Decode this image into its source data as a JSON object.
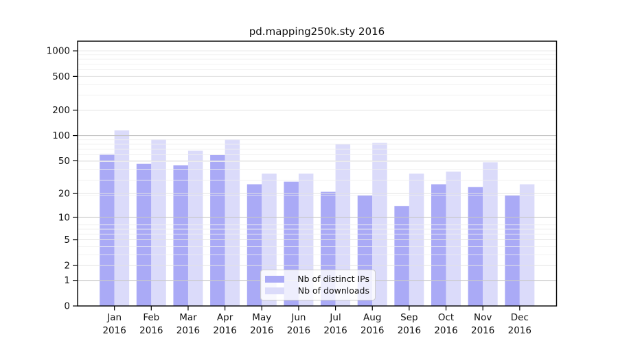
{
  "window": {
    "background": "#ffffff"
  },
  "chart_data": {
    "type": "bar",
    "title": "pd.mapping250k.sty 2016",
    "categories": [
      "Jan",
      "Feb",
      "Mar",
      "Apr",
      "May",
      "Jun",
      "Jul",
      "Aug",
      "Sep",
      "Oct",
      "Nov",
      "Dec"
    ],
    "x_tick_year": "2016",
    "series": [
      {
        "name": "Nb of distinct IPs",
        "color": "#aaaaf6",
        "values": [
          60,
          46,
          44,
          59,
          26,
          28,
          21,
          19,
          14,
          26,
          24,
          19
        ]
      },
      {
        "name": "Nb of downloads",
        "color": "#dbdbfa",
        "values": [
          115,
          90,
          66,
          90,
          35,
          35,
          79,
          82,
          35,
          37,
          48,
          26
        ]
      }
    ],
    "xlabel": "",
    "ylabel": "",
    "yscale": "log1p",
    "yticks": [
      0,
      1,
      2,
      5,
      10,
      20,
      50,
      100,
      200,
      500,
      1000
    ],
    "ylim": [
      0,
      1300
    ],
    "grid": true,
    "grid_on_top_of_bars": true,
    "legend_position": "lower center",
    "colors": {
      "grid_minor": "#efefef",
      "grid_major_light": "#e2e2e2",
      "grid_major_strong": "#c6c6c6",
      "axis": "#000000"
    }
  }
}
